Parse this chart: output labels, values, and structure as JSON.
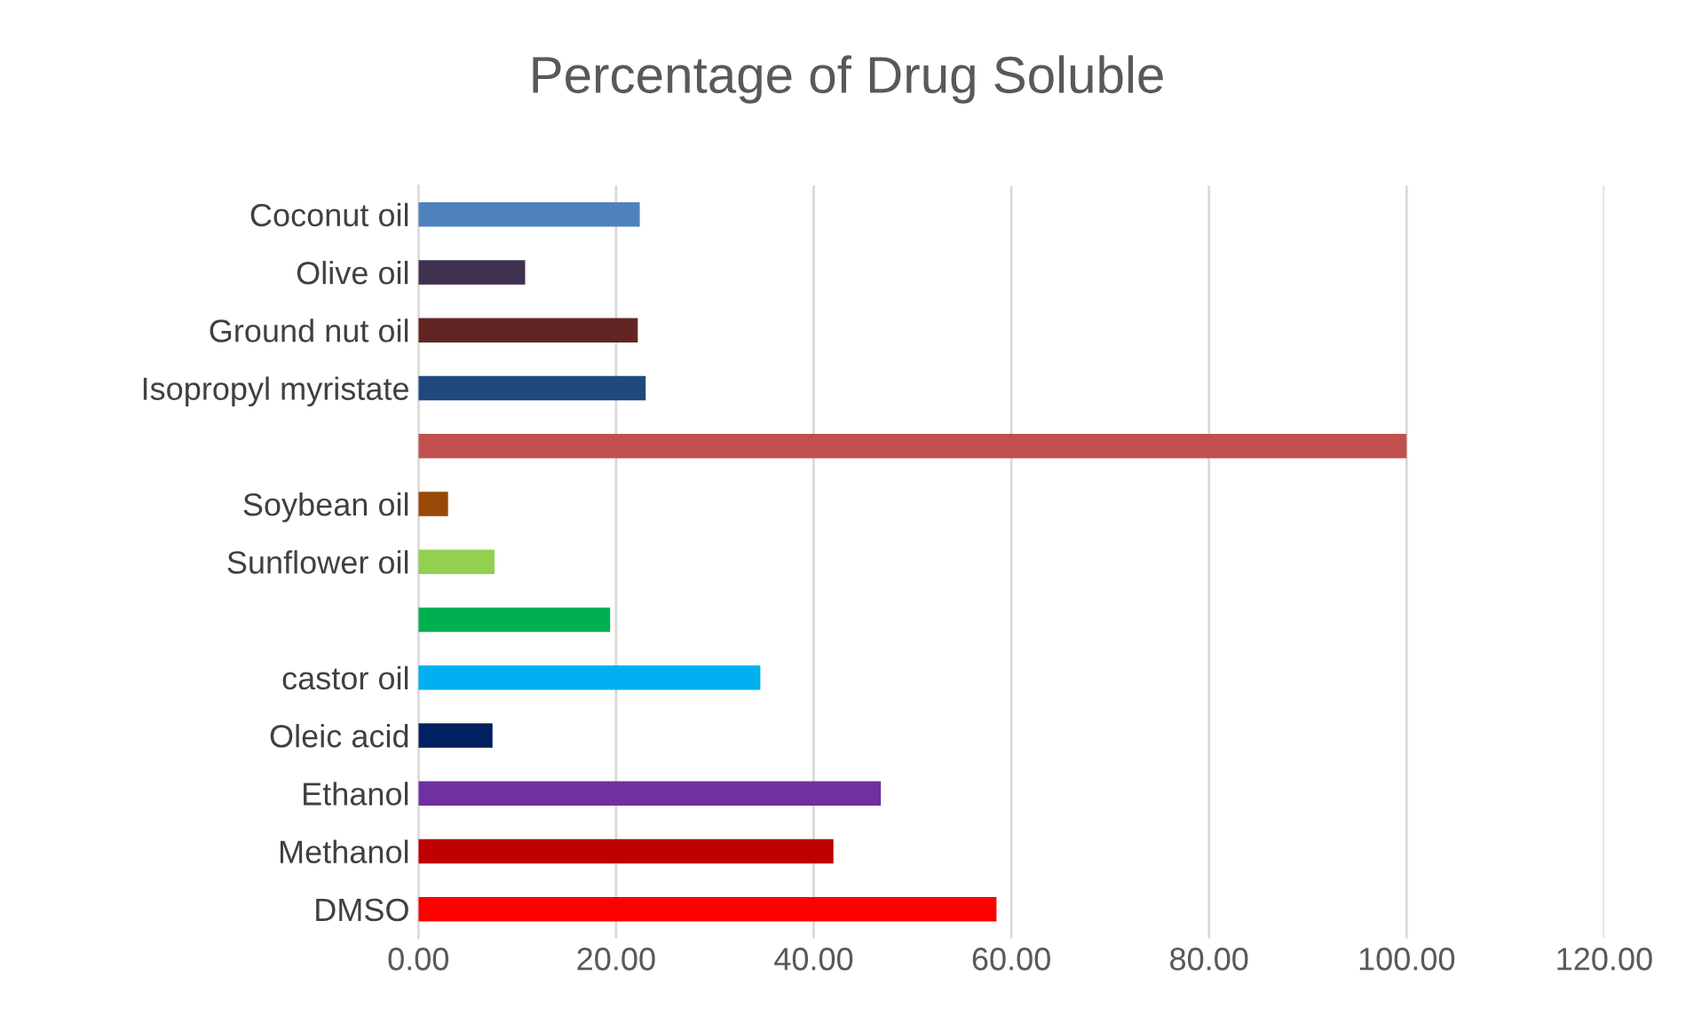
{
  "chart_data": {
    "type": "bar",
    "orientation": "horizontal",
    "title": "Percentage of Drug Soluble",
    "categories": [
      "Coconut oil",
      "Olive oil",
      "Ground nut oil",
      "Isopropyl myristate",
      null,
      "Soybean oil",
      "Sunflower oil",
      null,
      "castor oil",
      "Oleic acid",
      "Ethanol",
      "Methanol",
      "DMSO"
    ],
    "values": [
      22.4,
      10.8,
      22.2,
      23.0,
      100,
      3.0,
      7.7,
      19.4,
      34.6,
      7.5,
      46.8,
      42.0,
      58.5
    ],
    "colors": [
      "#4f81bd",
      "#403151",
      "#632523",
      "#1f497d",
      "#c0504d",
      "#984807",
      "#92d050",
      "#00b050",
      "#00b0f0",
      "#002060",
      "#7030a0",
      "#c00000",
      "#ff0000"
    ],
    "xlim": [
      0,
      120
    ],
    "xticks": [
      {
        "value": 0,
        "label": "0.00"
      },
      {
        "value": 20,
        "label": "20.00"
      },
      {
        "value": 40,
        "label": "40.00"
      },
      {
        "value": 60,
        "label": "60.00"
      },
      {
        "value": 80,
        "label": "80.00"
      },
      {
        "value": 100,
        "label": "100.00"
      },
      {
        "value": 120,
        "label": "120.00"
      }
    ],
    "grid": "x"
  }
}
